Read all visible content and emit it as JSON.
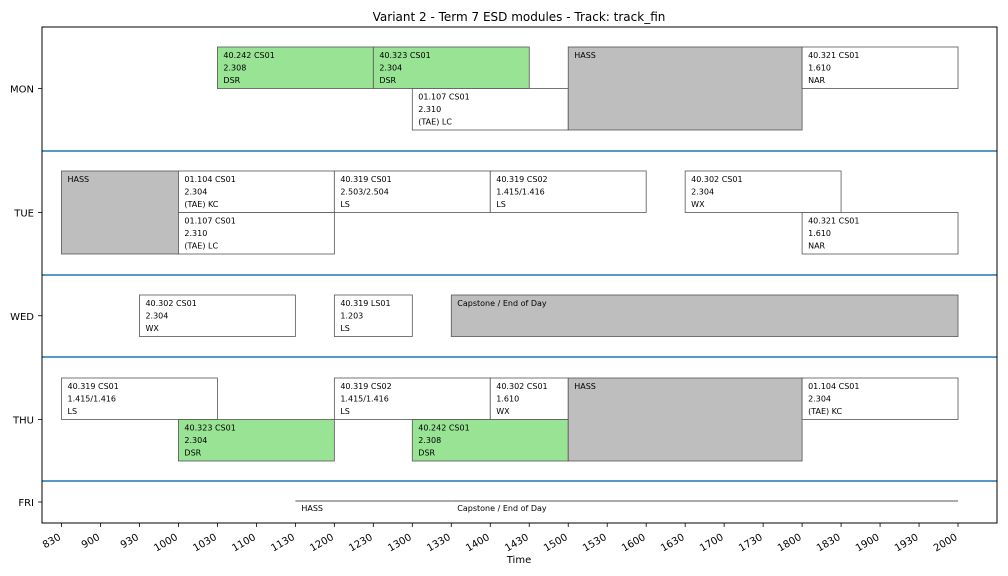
{
  "chart_data": {
    "type": "gantt",
    "title": "Variant 2 - Term 7 ESD modules - Track: track_fin",
    "xlabel": "Time",
    "x_ticks": [
      830,
      900,
      930,
      1000,
      1030,
      1100,
      1130,
      1200,
      1230,
      1300,
      1330,
      1400,
      1430,
      1500,
      1530,
      1600,
      1630,
      1700,
      1730,
      1800,
      1830,
      1900,
      1930,
      2000
    ],
    "x_tick_labels": [
      "830",
      "900",
      "930",
      "1000",
      "1030",
      "1100",
      "1130",
      "1200",
      "1230",
      "1300",
      "1330",
      "1400",
      "1430",
      "1500",
      "1530",
      "1600",
      "1630",
      "1700",
      "1730",
      "1800",
      "1830",
      "1900",
      "1930",
      "2000"
    ],
    "xlim": [
      8.25,
      20.5
    ],
    "days": [
      {
        "label": "MON",
        "rows": 2
      },
      {
        "label": "TUE",
        "rows": 2
      },
      {
        "label": "WED",
        "rows": 1
      },
      {
        "label": "THU",
        "rows": 2
      },
      {
        "label": "FRI",
        "rows": 1
      }
    ],
    "colors": {
      "green": "#98e394",
      "gray": "#bebebe",
      "white": "#ffffff",
      "separator": "#1f77b4",
      "border": "#555555"
    },
    "blocks": [
      {
        "day": 0,
        "row": 0,
        "start": 10.5,
        "end": 12.5,
        "fill": "green",
        "lines": [
          "40.242 CS01",
          "2.308",
          "DSR"
        ]
      },
      {
        "day": 0,
        "row": 0,
        "start": 12.5,
        "end": 14.5,
        "fill": "green",
        "lines": [
          "40.323 CS01",
          "2.304",
          "DSR"
        ]
      },
      {
        "day": 0,
        "row": 1,
        "start": 13.0,
        "end": 15.0,
        "fill": "white",
        "lines": [
          "01.107 CS01",
          "2.310",
          "(TAE) LC"
        ]
      },
      {
        "day": 0,
        "row": 0,
        "rows": 2,
        "start": 15.0,
        "end": 18.0,
        "fill": "gray",
        "lines": [
          "HASS"
        ]
      },
      {
        "day": 0,
        "row": 0,
        "start": 18.0,
        "end": 20.0,
        "fill": "white",
        "lines": [
          "40.321 CS01",
          "1.610",
          "NAR"
        ]
      },
      {
        "day": 1,
        "row": 0,
        "rows": 2,
        "start": 8.5,
        "end": 10.0,
        "fill": "gray",
        "lines": [
          "HASS"
        ]
      },
      {
        "day": 1,
        "row": 0,
        "start": 10.0,
        "end": 12.0,
        "fill": "white",
        "lines": [
          "01.104 CS01",
          "2.304",
          "(TAE) KC"
        ]
      },
      {
        "day": 1,
        "row": 1,
        "start": 10.0,
        "end": 12.0,
        "fill": "white",
        "lines": [
          "01.107 CS01",
          "2.310",
          "(TAE) LC"
        ]
      },
      {
        "day": 1,
        "row": 0,
        "start": 12.0,
        "end": 14.0,
        "fill": "white",
        "lines": [
          "40.319 CS01",
          "2.503/2.504",
          "LS"
        ]
      },
      {
        "day": 1,
        "row": 0,
        "start": 14.0,
        "end": 16.0,
        "fill": "white",
        "lines": [
          "40.319 CS02",
          "1.415/1.416",
          "LS"
        ]
      },
      {
        "day": 1,
        "row": 0,
        "start": 16.5,
        "end": 18.5,
        "fill": "white",
        "lines": [
          "40.302 CS01",
          "2.304",
          "WX"
        ]
      },
      {
        "day": 1,
        "row": 1,
        "start": 18.0,
        "end": 20.0,
        "fill": "white",
        "lines": [
          "40.321 CS01",
          "1.610",
          "NAR"
        ]
      },
      {
        "day": 2,
        "row": 0,
        "start": 9.5,
        "end": 11.5,
        "fill": "white",
        "lines": [
          "40.302 CS01",
          "2.304",
          "WX"
        ]
      },
      {
        "day": 2,
        "row": 0,
        "start": 12.0,
        "end": 13.0,
        "fill": "white",
        "lines": [
          "40.319 LS01",
          "1.203",
          "LS"
        ]
      },
      {
        "day": 2,
        "row": 0,
        "start": 13.5,
        "end": 20.0,
        "fill": "gray",
        "lines": [
          "Capstone / End of Day"
        ]
      },
      {
        "day": 3,
        "row": 0,
        "start": 8.5,
        "end": 10.5,
        "fill": "white",
        "lines": [
          "40.319 CS01",
          "1.415/1.416",
          "LS"
        ]
      },
      {
        "day": 3,
        "row": 1,
        "start": 10.0,
        "end": 12.0,
        "fill": "green",
        "lines": [
          "40.323 CS01",
          "2.304",
          "DSR"
        ]
      },
      {
        "day": 3,
        "row": 0,
        "start": 12.0,
        "end": 14.0,
        "fill": "white",
        "lines": [
          "40.319 CS02",
          "1.415/1.416",
          "LS"
        ]
      },
      {
        "day": 3,
        "row": 1,
        "start": 13.0,
        "end": 15.0,
        "fill": "green",
        "lines": [
          "40.242 CS01",
          "2.308",
          "DSR"
        ]
      },
      {
        "day": 3,
        "row": 0,
        "start": 14.0,
        "end": 15.0,
        "fill": "white",
        "lines": [
          "40.302 CS01",
          "1.610",
          "WX"
        ]
      },
      {
        "day": 3,
        "row": 0,
        "rows": 2,
        "start": 15.0,
        "end": 18.0,
        "fill": "gray",
        "lines": [
          "HASS"
        ]
      },
      {
        "day": 3,
        "row": 0,
        "start": 18.0,
        "end": 20.0,
        "fill": "white",
        "lines": [
          "01.104 CS01",
          "2.304",
          "(TAE) KC"
        ]
      },
      {
        "day": 4,
        "row": 0,
        "start": 11.5,
        "end": 13.5,
        "fill": "flat",
        "lines": [
          "HASS"
        ]
      },
      {
        "day": 4,
        "row": 0,
        "start": 13.5,
        "end": 20.0,
        "fill": "flat",
        "lines": [
          "Capstone / End of Day"
        ]
      }
    ]
  }
}
